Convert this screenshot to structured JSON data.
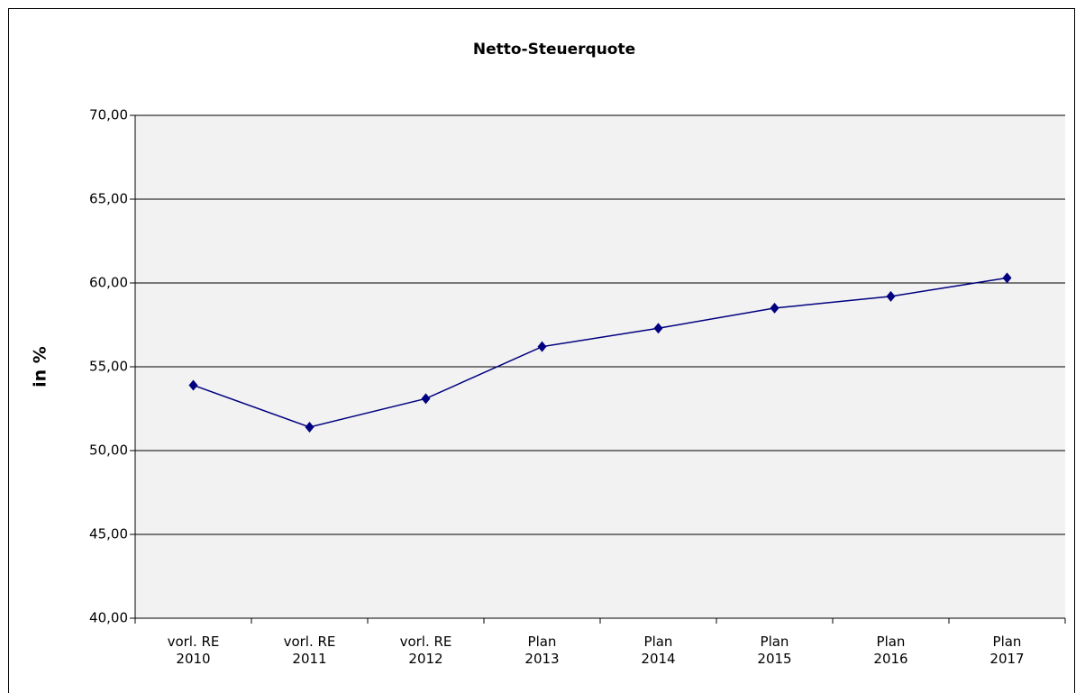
{
  "chart_data": {
    "type": "line",
    "title": "Netto-Steuerquote",
    "y_label": "in %",
    "categories": [
      "vorl. RE\n2010",
      "vorl. RE\n2011",
      "vorl. RE\n2012",
      "Plan\n2013",
      "Plan\n2014",
      "Plan\n2015",
      "Plan\n2016",
      "Plan\n2017"
    ],
    "series": [
      {
        "name": "Netto-Steuerquote",
        "color": "#000080",
        "values": [
          53.9,
          51.4,
          53.1,
          56.2,
          57.3,
          58.5,
          59.2,
          60.3
        ]
      }
    ],
    "ylim": [
      40,
      70
    ],
    "yticks": [
      {
        "value": 40,
        "label": "40,00"
      },
      {
        "value": 45,
        "label": "45,00"
      },
      {
        "value": 50,
        "label": "50,00"
      },
      {
        "value": 55,
        "label": "55,00"
      },
      {
        "value": 60,
        "label": "60,00"
      },
      {
        "value": 65,
        "label": "65,00"
      },
      {
        "value": 70,
        "label": "70,00"
      }
    ],
    "grid": true,
    "plot_background": "#f2f2f2"
  }
}
